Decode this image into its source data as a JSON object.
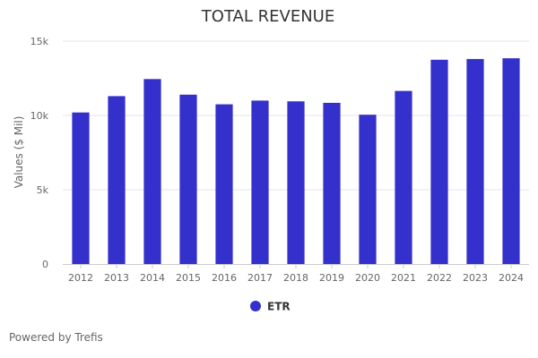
{
  "chart_data": {
    "type": "bar",
    "title": "TOTAL REVENUE",
    "xlabel": "",
    "ylabel": "Values ($ Mil)",
    "categories": [
      "2012",
      "2013",
      "2014",
      "2015",
      "2016",
      "2017",
      "2018",
      "2019",
      "2020",
      "2021",
      "2022",
      "2023",
      "2024"
    ],
    "series": [
      {
        "name": "ETR",
        "values": [
          10200,
          11300,
          12450,
          11400,
          10750,
          11000,
          10950,
          10850,
          10050,
          11650,
          13750,
          13800,
          13850
        ]
      }
    ],
    "ylim": [
      0,
      15000
    ],
    "yticks": [
      {
        "value": 0,
        "label": "0"
      },
      {
        "value": 5000,
        "label": "5k"
      },
      {
        "value": 10000,
        "label": "10k"
      },
      {
        "value": 15000,
        "label": "15k"
      }
    ],
    "grid": true,
    "legend_position": "bottom",
    "colors": {
      "bar": "#3430cc",
      "grid": "#e6e6e6",
      "axis": "#cccccc"
    }
  },
  "footer": {
    "credit": "Powered by Trefis"
  }
}
